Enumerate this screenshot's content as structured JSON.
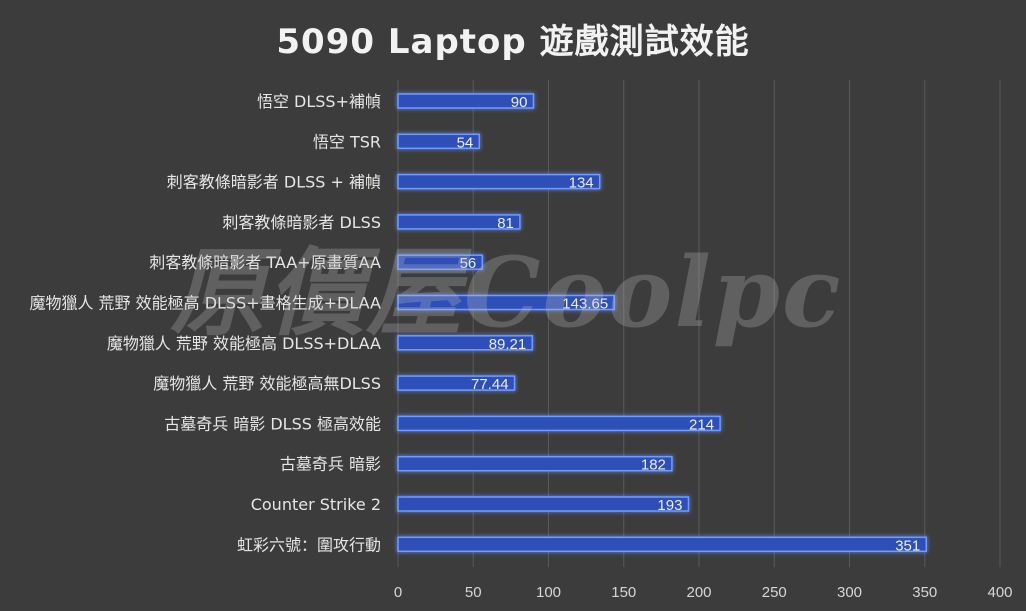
{
  "chart_data": {
    "type": "bar",
    "orientation": "horizontal",
    "title": "5090 Laptop 遊戲測試效能",
    "categories": [
      "悟空 DLSS+補幀",
      "悟空 TSR",
      "刺客教條暗影者 DLSS + 補幀",
      "刺客教條暗影者 DLSS",
      "刺客教條暗影者 TAA+原畫質AA",
      "魔物獵人 荒野 效能極高 DLSS+畫格生成+DLAA",
      "魔物獵人 荒野 效能極高 DLSS+DLAA",
      "魔物獵人 荒野 效能極高無DLSS",
      "古墓奇兵 暗影 DLSS 極高效能",
      "古墓奇兵 暗影",
      "Counter Strike 2",
      "虹彩六號：圍攻行動"
    ],
    "values": [
      90,
      54,
      134,
      81,
      56,
      143.65,
      89.21,
      77.44,
      214,
      182,
      193,
      351
    ],
    "value_labels": [
      "90",
      "54",
      "134",
      "81",
      "56",
      "143.65",
      "89.21",
      "77.44",
      "214",
      "182",
      "193",
      "351"
    ],
    "xlim": [
      0,
      400
    ],
    "x_ticks": [
      0,
      50,
      100,
      150,
      200,
      250,
      300,
      350,
      400
    ],
    "grid": "vertical",
    "legend": "none",
    "bar_color": "#2f4fb8",
    "bar_glow": "#6f9bff",
    "background": "#3c3c3c"
  },
  "watermark": "原價屋Coolpc"
}
